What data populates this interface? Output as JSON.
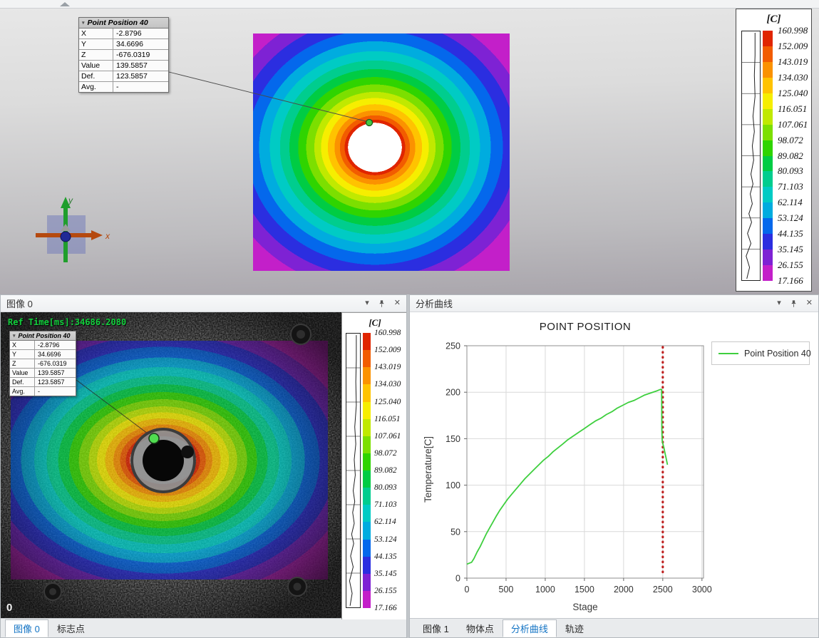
{
  "icons": {
    "dropdown_glyph": "▾",
    "close_glyph": "✕"
  },
  "viewport": {
    "axis_triad": {
      "x_label": "x",
      "y_label": "y"
    }
  },
  "point_tooltip": {
    "title": "Point Position 40",
    "rows": [
      {
        "label": "X",
        "value": "-2.8796"
      },
      {
        "label": "Y",
        "value": "34.6696"
      },
      {
        "label": "Z",
        "value": "-676.0319"
      },
      {
        "label": "Value",
        "value": "139.5857"
      },
      {
        "label": "Def.",
        "value": "123.5857"
      },
      {
        "label": "Avg.",
        "value": "-"
      }
    ]
  },
  "color_legend": {
    "title": "[C]",
    "values": [
      "160.998",
      "152.009",
      "143.019",
      "134.030",
      "125.040",
      "116.051",
      "107.061",
      "98.072",
      "89.082",
      "80.093",
      "71.103",
      "62.114",
      "53.124",
      "44.135",
      "35.145",
      "26.155",
      "17.166"
    ],
    "band_colors": [
      "#e02500",
      "#f25c00",
      "#fb9200",
      "#ffc300",
      "#f6ee00",
      "#c0e900",
      "#7cdf00",
      "#2fd400",
      "#00cc44",
      "#00cd8e",
      "#00cbc4",
      "#00acdf",
      "#0468ec",
      "#2b2ee0",
      "#7e22d4",
      "#c31fc9"
    ]
  },
  "image_panel": {
    "title": "图像 0",
    "ref_time": "Ref Time[ms]:34686.2080",
    "frame_index": "0",
    "tabs": [
      {
        "name": "image-0",
        "label": "图像 0",
        "active": true
      },
      {
        "name": "marker-points",
        "label": "标志点",
        "active": false
      }
    ]
  },
  "curve_panel": {
    "title": "分析曲线",
    "tabs": [
      {
        "name": "image-1",
        "label": "图像 1",
        "active": false
      },
      {
        "name": "object-points",
        "label": "物体点",
        "active": false
      },
      {
        "name": "analysis-curve",
        "label": "分析曲线",
        "active": true
      },
      {
        "name": "trajectory",
        "label": "轨迹",
        "active": false
      }
    ]
  },
  "chart_data": {
    "type": "line",
    "title": "POINT POSITION",
    "xlabel": "Stage",
    "ylabel": "Temperature[C]",
    "xlim": [
      0,
      3020
    ],
    "ylim": [
      0,
      250
    ],
    "xticks": [
      0,
      500,
      1000,
      1500,
      2000,
      2500,
      3000
    ],
    "yticks": [
      0,
      50,
      100,
      150,
      200,
      250
    ],
    "grid": true,
    "legend_position": "top-right",
    "series": [
      {
        "name": "Point Position 40",
        "color": "#3ecf3e",
        "x": [
          0,
          30,
          60,
          90,
          130,
          170,
          210,
          250,
          290,
          330,
          370,
          420,
          470,
          520,
          570,
          620,
          680,
          740,
          800,
          860,
          920,
          980,
          1040,
          1100,
          1160,
          1220,
          1290,
          1360,
          1430,
          1500,
          1570,
          1640,
          1710,
          1780,
          1850,
          1920,
          1990,
          2060,
          2130,
          2200,
          2270,
          2340,
          2410,
          2470,
          2485,
          2488,
          2492,
          2500,
          2515,
          2530,
          2545,
          2560
        ],
        "y": [
          15,
          16,
          17,
          21,
          28,
          34,
          41,
          48,
          54,
          60,
          66,
          73,
          79,
          85,
          90,
          95,
          101,
          107,
          112,
          117,
          122,
          127,
          131,
          136,
          140,
          144,
          149,
          153,
          157,
          161,
          165,
          169,
          172,
          176,
          179,
          183,
          186,
          189,
          191,
          194,
          197,
          199,
          201,
          203,
          203,
          160,
          148,
          145,
          140,
          134,
          128,
          122
        ]
      }
    ],
    "marker_line": {
      "x": 2500,
      "color": "#c02020",
      "style": "dotted"
    }
  }
}
